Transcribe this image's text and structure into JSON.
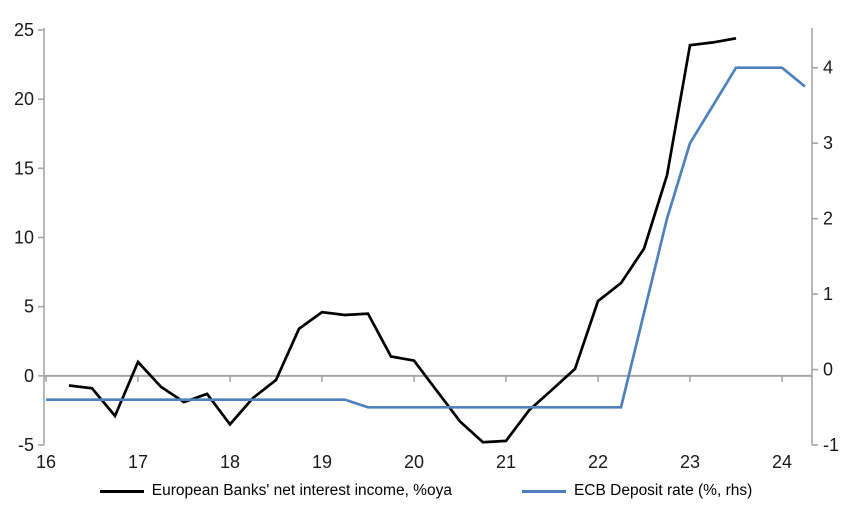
{
  "chart_data": {
    "type": "line",
    "title": "",
    "grid": "zero-line-only",
    "colors": {
      "axis_gray": "#a6a6a6",
      "series_nii": "#000000",
      "series_ecb": "#4f81bd",
      "label_color": "#1a1a1a"
    },
    "x_axis": {
      "labels": [
        "16",
        "17",
        "18",
        "19",
        "20",
        "21",
        "22",
        "23",
        "24"
      ],
      "range_quarters": [
        "16Q1",
        "24Q2"
      ]
    },
    "y_axis_left": {
      "min": -5,
      "max": 25,
      "ticks": [
        25,
        20,
        15,
        10,
        5,
        0,
        -5
      ]
    },
    "y_axis_right": {
      "min": -1,
      "max": 4.5,
      "ticks": [
        4,
        3,
        2,
        1,
        0,
        -1
      ]
    },
    "legend": {
      "position": "bottom-center"
    },
    "series": [
      {
        "name": "European Banks' net interest income, %oya",
        "axis": "left",
        "color": "#000000",
        "x": [
          "16Q2",
          "16Q3",
          "16Q4",
          "17Q1",
          "17Q2",
          "17Q3",
          "17Q4",
          "18Q1",
          "18Q2",
          "18Q3",
          "18Q4",
          "19Q1",
          "19Q2",
          "19Q3",
          "19Q4",
          "20Q1",
          "20Q2",
          "20Q3",
          "20Q4",
          "21Q1",
          "21Q2",
          "21Q3",
          "21Q4",
          "22Q1",
          "22Q2",
          "22Q3",
          "22Q4",
          "23Q1",
          "23Q2",
          "23Q3"
        ],
        "values": [
          -0.7,
          -0.9,
          -2.9,
          1.0,
          -0.8,
          -1.9,
          -1.3,
          -3.5,
          -1.6,
          -0.3,
          3.4,
          4.6,
          4.4,
          4.5,
          1.4,
          1.1,
          -1.1,
          -3.3,
          -4.8,
          -4.7,
          -2.5,
          -1.0,
          0.5,
          5.4,
          6.7,
          9.2,
          14.5,
          23.9,
          24.1,
          24.4
        ]
      },
      {
        "name": "ECB Deposit rate (%, rhs)",
        "axis": "right",
        "color": "#4f81bd",
        "x": [
          "16Q1",
          "16Q2",
          "16Q3",
          "16Q4",
          "17Q1",
          "17Q2",
          "17Q3",
          "17Q4",
          "18Q1",
          "18Q2",
          "18Q3",
          "18Q4",
          "19Q1",
          "19Q2",
          "19Q3",
          "19Q4",
          "20Q1",
          "20Q2",
          "20Q3",
          "20Q4",
          "21Q1",
          "21Q2",
          "21Q3",
          "21Q4",
          "22Q1",
          "22Q2",
          "22Q3",
          "22Q4",
          "23Q1",
          "23Q2",
          "23Q3",
          "23Q4",
          "24Q1",
          "24Q2"
        ],
        "values": [
          -0.4,
          -0.4,
          -0.4,
          -0.4,
          -0.4,
          -0.4,
          -0.4,
          -0.4,
          -0.4,
          -0.4,
          -0.4,
          -0.4,
          -0.4,
          -0.4,
          -0.5,
          -0.5,
          -0.5,
          -0.5,
          -0.5,
          -0.5,
          -0.5,
          -0.5,
          -0.5,
          -0.5,
          -0.5,
          -0.5,
          0.75,
          2.0,
          3.0,
          3.5,
          4.0,
          4.0,
          4.0,
          3.75
        ]
      }
    ]
  }
}
